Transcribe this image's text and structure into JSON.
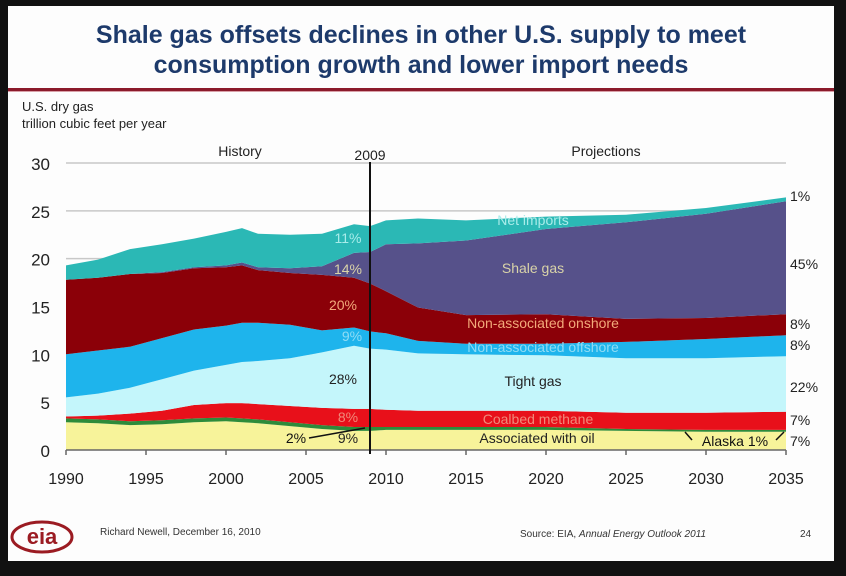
{
  "slide": {
    "title_line1": "Shale gas offsets declines in other U.S. supply to meet",
    "title_line2": "consumption growth and lower import needs",
    "footer_author": "Richard Newell, December 16, 2010",
    "footer_source_prefix": "Source:  EIA, ",
    "footer_source_title": "Annual Energy Outlook 2011",
    "page_number": "24",
    "logo_text": "eia"
  },
  "chart_data": {
    "type": "area",
    "stacked": true,
    "title": "Shale gas offsets declines in other U.S. supply to meet consumption growth and lower import needs",
    "ylabel_line1": "U.S. dry gas",
    "ylabel_line2": "trillion cubic feet per year",
    "xlabel": "",
    "ylim": [
      0,
      30
    ],
    "xlim": [
      1990,
      2035
    ],
    "yticks": [
      "0",
      "5",
      "10",
      "15",
      "20",
      "25",
      "30"
    ],
    "xticks": [
      "1990",
      "1995",
      "2000",
      "2005",
      "2010",
      "2015",
      "2020",
      "2025",
      "2030",
      "2035"
    ],
    "grid": true,
    "section_labels": {
      "history": "History",
      "projections": "Projections",
      "divider": "2009"
    },
    "divider_year": 2009,
    "x": [
      1990,
      1992,
      1994,
      1996,
      1998,
      2000,
      2001,
      2002,
      2004,
      2006,
      2008,
      2009,
      2010,
      2012,
      2015,
      2020,
      2025,
      2030,
      2035
    ],
    "series": [
      {
        "name": "Associated with oil",
        "color": "#f7f39a",
        "label_color": "#222222",
        "values": [
          2.9,
          2.8,
          2.6,
          2.7,
          2.9,
          3.0,
          2.9,
          2.8,
          2.5,
          2.2,
          2.0,
          2.0,
          2.1,
          2.1,
          2.1,
          2.1,
          2.0,
          1.9,
          1.9
        ],
        "share_2009": "9%",
        "share_2035": "7%"
      },
      {
        "name": "Alaska",
        "color": "#2e8b3a",
        "label_color": "#111111",
        "values": [
          0.4,
          0.4,
          0.4,
          0.4,
          0.4,
          0.4,
          0.4,
          0.4,
          0.4,
          0.4,
          0.4,
          0.4,
          0.3,
          0.3,
          0.3,
          0.3,
          0.2,
          0.2,
          0.2
        ],
        "share_2009": "2%",
        "share_2035": "1%"
      },
      {
        "name": "Coalbed methane",
        "color": "#e8101a",
        "label_color": "#f08a7a",
        "values": [
          0.2,
          0.4,
          0.8,
          1.0,
          1.4,
          1.5,
          1.6,
          1.6,
          1.7,
          1.8,
          1.9,
          1.9,
          1.8,
          1.7,
          1.7,
          1.7,
          1.7,
          1.8,
          1.9
        ],
        "share_2009": "8%",
        "share_2035": "7%"
      },
      {
        "name": "Tight gas",
        "color": "#c4f6fb",
        "label_color": "#222222",
        "values": [
          2.0,
          2.3,
          2.7,
          3.3,
          3.6,
          4.0,
          4.3,
          4.5,
          5.0,
          5.8,
          6.6,
          6.3,
          6.3,
          6.0,
          5.9,
          5.8,
          5.7,
          5.7,
          5.8
        ],
        "share_2009": "28%",
        "share_2035": "22%"
      },
      {
        "name": "Non-associated offshore",
        "color": "#1eb4ec",
        "label_color": "#8fdcf5",
        "values": [
          4.5,
          4.5,
          4.3,
          4.3,
          4.3,
          4.1,
          4.1,
          4.0,
          3.5,
          2.3,
          1.9,
          1.8,
          1.7,
          1.3,
          1.1,
          1.2,
          1.7,
          2.0,
          2.2
        ],
        "share_2009": "9%",
        "share_2035": "8%"
      },
      {
        "name": "Non-associated onshore",
        "color": "#8b0008",
        "label_color": "#f2a97a",
        "values": [
          7.8,
          7.6,
          7.6,
          6.8,
          6.4,
          6.1,
          6.0,
          5.5,
          5.4,
          5.8,
          5.2,
          5.0,
          4.4,
          3.5,
          3.0,
          3.1,
          2.4,
          2.2,
          2.2
        ],
        "share_2009": "20%",
        "share_2035": "8%"
      },
      {
        "name": "Shale gas",
        "color": "#56518a",
        "label_color": "#d9d3a8",
        "values": [
          0.0,
          0.0,
          0.0,
          0.1,
          0.1,
          0.2,
          0.3,
          0.3,
          0.5,
          0.9,
          2.6,
          3.3,
          4.9,
          6.7,
          7.8,
          8.9,
          10.1,
          10.9,
          11.8
        ],
        "share_2009": "14%",
        "share_2035": "45%"
      },
      {
        "name": "Net imports",
        "color": "#2bb8b5",
        "label_color": "#a9ecea",
        "values": [
          1.5,
          1.9,
          2.6,
          2.9,
          3.0,
          3.5,
          3.6,
          3.5,
          3.5,
          3.4,
          3.0,
          2.7,
          2.5,
          2.6,
          2.1,
          1.3,
          0.8,
          0.6,
          0.4
        ],
        "share_2009": "11%",
        "share_2035": "1%"
      }
    ]
  }
}
